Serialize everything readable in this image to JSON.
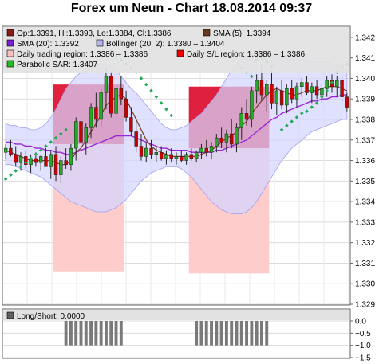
{
  "title": "Forex um Neun - Chart 18.08.2014 09:37",
  "legend": [
    {
      "text": "Op:1.3391, Hi:1.3393, Lo:1.3384, Cl:1.3386",
      "color": "#8b1a1a",
      "icon": "candle-swatch"
    },
    {
      "text": "SMA (5): 1.3394",
      "color": "#6b3a1e",
      "icon": "sma5-swatch"
    },
    {
      "text": "SMA (20): 1.3392",
      "color": "#7a1fd6",
      "icon": "sma20-swatch"
    },
    {
      "text": "Bollinger (20, 2): 1.3380 – 1.3404",
      "color": "#b4b4f0",
      "icon": "bollinger-swatch"
    },
    {
      "text": "Daily trading region: 1.3386 – 1.3386",
      "color": "#f9c0c0",
      "icon": "trading-region-swatch"
    },
    {
      "text": "Daily S/L region: 1.3386 – 1.3386",
      "color": "#ee0000",
      "icon": "sl-region-swatch"
    },
    {
      "text": "Parabolic SAR: 1.3407",
      "color": "#22bb22",
      "icon": "sar-swatch"
    }
  ],
  "sub_legend": {
    "text": "Long/Short: 0.0000",
    "color": "#606060"
  },
  "colors": {
    "up": "#22aa22",
    "down": "#cc0000",
    "sar": "#22aa55",
    "sma5": "#7a3b22",
    "sma20": "#9a26d6",
    "bollinger_fill": "#d4d4ff",
    "bollinger_edge": "#a0a0ee",
    "trading_region": "#ffcccc",
    "sl_region": "#dd1133",
    "bars": "#7a7a7a"
  },
  "chart_data": [
    {
      "type": "candlestick",
      "title": "Forex um Neun - Chart 18.08.2014 09:37",
      "ylim": [
        1.329,
        1.3425
      ],
      "y_ticks": [
        "1.329",
        "1.330",
        "1.331",
        "1.332",
        "1.333",
        "1.334",
        "1.335",
        "1.336",
        "1.337",
        "1.338",
        "1.339",
        "1.340",
        "1.341",
        "1.342"
      ],
      "grid": true,
      "legend_position": "top-left",
      "candles": [
        {
          "o": 1.3364,
          "h": 1.3368,
          "l": 1.3361,
          "c": 1.3366
        },
        {
          "o": 1.3366,
          "h": 1.337,
          "l": 1.3362,
          "c": 1.3363
        },
        {
          "o": 1.3363,
          "h": 1.3367,
          "l": 1.3357,
          "c": 1.3359
        },
        {
          "o": 1.3359,
          "h": 1.3364,
          "l": 1.3355,
          "c": 1.3362
        },
        {
          "o": 1.3362,
          "h": 1.3365,
          "l": 1.3356,
          "c": 1.3358
        },
        {
          "o": 1.3358,
          "h": 1.3363,
          "l": 1.3354,
          "c": 1.3361
        },
        {
          "o": 1.3361,
          "h": 1.3364,
          "l": 1.3357,
          "c": 1.3359
        },
        {
          "o": 1.3359,
          "h": 1.3363,
          "l": 1.3355,
          "c": 1.3362
        },
        {
          "o": 1.3362,
          "h": 1.3366,
          "l": 1.3357,
          "c": 1.3357
        },
        {
          "o": 1.3357,
          "h": 1.3365,
          "l": 1.3351,
          "c": 1.3363
        },
        {
          "o": 1.3363,
          "h": 1.3367,
          "l": 1.335,
          "c": 1.3353
        },
        {
          "o": 1.3353,
          "h": 1.3362,
          "l": 1.3349,
          "c": 1.336
        },
        {
          "o": 1.336,
          "h": 1.3366,
          "l": 1.3356,
          "c": 1.3358
        },
        {
          "o": 1.3358,
          "h": 1.3368,
          "l": 1.3355,
          "c": 1.3366
        },
        {
          "o": 1.3366,
          "h": 1.3381,
          "l": 1.336,
          "c": 1.3379
        },
        {
          "o": 1.3379,
          "h": 1.3383,
          "l": 1.3366,
          "c": 1.3369
        },
        {
          "o": 1.3369,
          "h": 1.3378,
          "l": 1.3363,
          "c": 1.3376
        },
        {
          "o": 1.3376,
          "h": 1.3388,
          "l": 1.3371,
          "c": 1.3386
        },
        {
          "o": 1.3386,
          "h": 1.3393,
          "l": 1.3376,
          "c": 1.338
        },
        {
          "o": 1.338,
          "h": 1.3395,
          "l": 1.3376,
          "c": 1.3393
        },
        {
          "o": 1.3393,
          "h": 1.3405,
          "l": 1.3385,
          "c": 1.3401
        },
        {
          "o": 1.3401,
          "h": 1.3403,
          "l": 1.3381,
          "c": 1.3383
        },
        {
          "o": 1.3383,
          "h": 1.3397,
          "l": 1.3378,
          "c": 1.3395
        },
        {
          "o": 1.3395,
          "h": 1.3401,
          "l": 1.3387,
          "c": 1.339
        },
        {
          "o": 1.339,
          "h": 1.3394,
          "l": 1.3379,
          "c": 1.3381
        },
        {
          "o": 1.3381,
          "h": 1.3386,
          "l": 1.3372,
          "c": 1.3374
        },
        {
          "o": 1.3374,
          "h": 1.3379,
          "l": 1.3364,
          "c": 1.3367
        },
        {
          "o": 1.3367,
          "h": 1.3373,
          "l": 1.336,
          "c": 1.3362
        },
        {
          "o": 1.3362,
          "h": 1.3369,
          "l": 1.3359,
          "c": 1.3366
        },
        {
          "o": 1.3366,
          "h": 1.337,
          "l": 1.3361,
          "c": 1.3363
        },
        {
          "o": 1.3363,
          "h": 1.3367,
          "l": 1.3359,
          "c": 1.3364
        },
        {
          "o": 1.3364,
          "h": 1.3367,
          "l": 1.336,
          "c": 1.3361
        },
        {
          "o": 1.3361,
          "h": 1.3365,
          "l": 1.3358,
          "c": 1.3363
        },
        {
          "o": 1.3363,
          "h": 1.3366,
          "l": 1.3359,
          "c": 1.3361
        },
        {
          "o": 1.3361,
          "h": 1.3364,
          "l": 1.3358,
          "c": 1.3362
        },
        {
          "o": 1.3362,
          "h": 1.3365,
          "l": 1.3359,
          "c": 1.336
        },
        {
          "o": 1.336,
          "h": 1.3364,
          "l": 1.3358,
          "c": 1.3363
        },
        {
          "o": 1.3363,
          "h": 1.3366,
          "l": 1.336,
          "c": 1.3361
        },
        {
          "o": 1.3361,
          "h": 1.3365,
          "l": 1.3359,
          "c": 1.3364
        },
        {
          "o": 1.3364,
          "h": 1.3368,
          "l": 1.3361,
          "c": 1.3366
        },
        {
          "o": 1.3366,
          "h": 1.337,
          "l": 1.3362,
          "c": 1.3364
        },
        {
          "o": 1.3364,
          "h": 1.3369,
          "l": 1.3361,
          "c": 1.3367
        },
        {
          "o": 1.3367,
          "h": 1.3373,
          "l": 1.3364,
          "c": 1.3371
        },
        {
          "o": 1.3371,
          "h": 1.3376,
          "l": 1.3366,
          "c": 1.3369
        },
        {
          "o": 1.3369,
          "h": 1.3375,
          "l": 1.3364,
          "c": 1.3373
        },
        {
          "o": 1.3373,
          "h": 1.338,
          "l": 1.3366,
          "c": 1.3368
        },
        {
          "o": 1.3368,
          "h": 1.3378,
          "l": 1.3364,
          "c": 1.3376
        },
        {
          "o": 1.3376,
          "h": 1.3386,
          "l": 1.337,
          "c": 1.3383
        },
        {
          "o": 1.3383,
          "h": 1.339,
          "l": 1.3377,
          "c": 1.338
        },
        {
          "o": 1.338,
          "h": 1.3396,
          "l": 1.3376,
          "c": 1.3394
        },
        {
          "o": 1.3394,
          "h": 1.3402,
          "l": 1.3388,
          "c": 1.3399
        },
        {
          "o": 1.3399,
          "h": 1.3407,
          "l": 1.3389,
          "c": 1.3392
        },
        {
          "o": 1.3392,
          "h": 1.3399,
          "l": 1.3384,
          "c": 1.3397
        },
        {
          "o": 1.3397,
          "h": 1.3404,
          "l": 1.3385,
          "c": 1.3388
        },
        {
          "o": 1.3388,
          "h": 1.3396,
          "l": 1.3382,
          "c": 1.3394
        },
        {
          "o": 1.3394,
          "h": 1.3399,
          "l": 1.3385,
          "c": 1.3387
        },
        {
          "o": 1.3387,
          "h": 1.3397,
          "l": 1.3383,
          "c": 1.3395
        },
        {
          "o": 1.3395,
          "h": 1.3399,
          "l": 1.3388,
          "c": 1.339
        },
        {
          "o": 1.339,
          "h": 1.3398,
          "l": 1.3386,
          "c": 1.3396
        },
        {
          "o": 1.3396,
          "h": 1.34,
          "l": 1.3391,
          "c": 1.3398
        },
        {
          "o": 1.3398,
          "h": 1.3401,
          "l": 1.3392,
          "c": 1.3393
        },
        {
          "o": 1.3393,
          "h": 1.3398,
          "l": 1.3388,
          "c": 1.3396
        },
        {
          "o": 1.3396,
          "h": 1.3399,
          "l": 1.339,
          "c": 1.3392
        },
        {
          "o": 1.3392,
          "h": 1.3397,
          "l": 1.3388,
          "c": 1.3395
        },
        {
          "o": 1.3395,
          "h": 1.3401,
          "l": 1.3391,
          "c": 1.3399
        },
        {
          "o": 1.3399,
          "h": 1.3402,
          "l": 1.3393,
          "c": 1.3396
        },
        {
          "o": 1.3396,
          "h": 1.3401,
          "l": 1.3391,
          "c": 1.3399
        },
        {
          "o": 1.3399,
          "h": 1.3401,
          "l": 1.3389,
          "c": 1.3391
        },
        {
          "o": 1.3391,
          "h": 1.3393,
          "l": 1.3384,
          "c": 1.3386
        }
      ],
      "sma5": [
        1.3365,
        1.3364,
        1.3363,
        1.3362,
        1.3361,
        1.336,
        1.336,
        1.336,
        1.336,
        1.336,
        1.3359,
        1.3358,
        1.3358,
        1.336,
        1.3364,
        1.3366,
        1.337,
        1.3374,
        1.3378,
        1.3382,
        1.3387,
        1.3389,
        1.3391,
        1.3392,
        1.339,
        1.3385,
        1.338,
        1.3375,
        1.337,
        1.3367,
        1.3365,
        1.3364,
        1.3363,
        1.3362,
        1.3362,
        1.3362,
        1.3362,
        1.3362,
        1.3362,
        1.3363,
        1.3364,
        1.3365,
        1.3367,
        1.3369,
        1.3371,
        1.3372,
        1.3374,
        1.3377,
        1.3379,
        1.3383,
        1.3386,
        1.3389,
        1.3392,
        1.3394,
        1.3395,
        1.3394,
        1.3393,
        1.3392,
        1.3392,
        1.3393,
        1.3394,
        1.3394,
        1.3394,
        1.3395,
        1.3396,
        1.3396,
        1.3396,
        1.3395,
        1.3394
      ],
      "sma20": [
        1.3369,
        1.3369,
        1.3368,
        1.3368,
        1.3367,
        1.3367,
        1.3366,
        1.3366,
        1.3365,
        1.3365,
        1.3364,
        1.3364,
        1.3363,
        1.3363,
        1.3364,
        1.3365,
        1.3366,
        1.3367,
        1.3368,
        1.3369,
        1.337,
        1.3371,
        1.3372,
        1.3372,
        1.3372,
        1.3372,
        1.3371,
        1.337,
        1.3369,
        1.3368,
        1.3367,
        1.3366,
        1.3366,
        1.3365,
        1.3365,
        1.3365,
        1.3365,
        1.3364,
        1.3364,
        1.3364,
        1.3364,
        1.3364,
        1.3365,
        1.3365,
        1.3366,
        1.3367,
        1.3368,
        1.3369,
        1.337,
        1.3372,
        1.3374,
        1.3376,
        1.3378,
        1.338,
        1.3381,
        1.3383,
        1.3384,
        1.3385,
        1.3386,
        1.3387,
        1.3388,
        1.3389,
        1.3389,
        1.339,
        1.339,
        1.3391,
        1.3391,
        1.3392,
        1.3392
      ],
      "bollinger_upper": [
        1.3378,
        1.3377,
        1.3377,
        1.3376,
        1.3376,
        1.3375,
        1.3375,
        1.3376,
        1.3378,
        1.3381,
        1.3385,
        1.339,
        1.3395,
        1.3398,
        1.3401,
        1.3403,
        1.3405,
        1.3406,
        1.3407,
        1.3407,
        1.3407,
        1.3406,
        1.3404,
        1.3401,
        1.3398,
        1.3395,
        1.3393,
        1.339,
        1.3387,
        1.3384,
        1.3381,
        1.3378,
        1.3376,
        1.3375,
        1.3375,
        1.3376,
        1.3377,
        1.3379,
        1.3381,
        1.3383,
        1.3386,
        1.3389,
        1.3392,
        1.3396,
        1.34,
        1.3404,
        1.3407,
        1.3409,
        1.3411,
        1.3412,
        1.3412,
        1.3412,
        1.3411,
        1.3411,
        1.341,
        1.341,
        1.341,
        1.3409,
        1.3409,
        1.3409,
        1.3409,
        1.3408,
        1.3408,
        1.3408,
        1.3408,
        1.3407,
        1.3406,
        1.3405,
        1.3404
      ],
      "bollinger_lower": [
        1.3358,
        1.3358,
        1.3357,
        1.3356,
        1.3355,
        1.3354,
        1.3353,
        1.3352,
        1.335,
        1.3348,
        1.3346,
        1.3344,
        1.3342,
        1.334,
        1.3339,
        1.3338,
        1.3337,
        1.3336,
        1.3335,
        1.3335,
        1.3335,
        1.3336,
        1.3337,
        1.3339,
        1.3341,
        1.3344,
        1.3347,
        1.335,
        1.3352,
        1.3354,
        1.3355,
        1.3356,
        1.3357,
        1.3357,
        1.3357,
        1.3356,
        1.3354,
        1.3352,
        1.3349,
        1.3346,
        1.3343,
        1.334,
        1.3338,
        1.3336,
        1.3335,
        1.3334,
        1.3334,
        1.3334,
        1.3335,
        1.3337,
        1.334,
        1.3344,
        1.3348,
        1.3352,
        1.3356,
        1.336,
        1.3363,
        1.3366,
        1.3368,
        1.337,
        1.3372,
        1.3374,
        1.3375,
        1.3376,
        1.3377,
        1.3378,
        1.3379,
        1.338,
        1.338
      ],
      "sar": [
        1.3351,
        1.3353,
        1.3355,
        1.3357,
        1.3359,
        1.3361,
        1.3363,
        1.3365,
        1.3367,
        1.3369,
        1.3371,
        1.3373,
        1.3375,
        null,
        null,
        null,
        null,
        1.342,
        1.3419,
        1.3417,
        1.3415,
        1.3413,
        1.3411,
        1.3409,
        1.3407,
        1.3405,
        1.3403,
        1.34,
        1.3397,
        1.3394,
        1.3391,
        1.3388,
        1.3385,
        1.3382,
        null,
        null,
        null,
        null,
        null,
        null,
        null,
        null,
        null,
        null,
        null,
        null,
        null,
        1.3405,
        1.3403,
        1.3401,
        1.3409,
        1.341,
        1.3408,
        1.3406,
        null,
        1.3375,
        1.3377,
        1.3379,
        1.3381,
        1.3383,
        1.3384,
        1.3386,
        1.3388,
        1.3391,
        1.3394,
        1.3398,
        1.3403,
        1.3406,
        1.3407
      ],
      "regions": [
        {
          "from": 10,
          "to": 23,
          "trading_low": 1.3306,
          "trading_high": 1.3397,
          "sl_low": 1.3368,
          "sl_high": 1.3397
        },
        {
          "from": 37,
          "to": 52,
          "trading_low": 1.3305,
          "trading_high": 1.3396,
          "sl_low": 1.3366,
          "sl_high": 1.3396
        }
      ]
    },
    {
      "type": "bar",
      "title": "Long/Short: 0.0000",
      "ylim": [
        -1.5,
        0.0
      ],
      "y_ticks": [
        "0.0",
        "−0.5",
        "−1.0",
        "−1.5"
      ],
      "bar_groups": [
        {
          "from": 12,
          "to": 23,
          "value": -1.0
        },
        {
          "from": 38,
          "to": 52,
          "value": -1.0
        }
      ]
    }
  ]
}
